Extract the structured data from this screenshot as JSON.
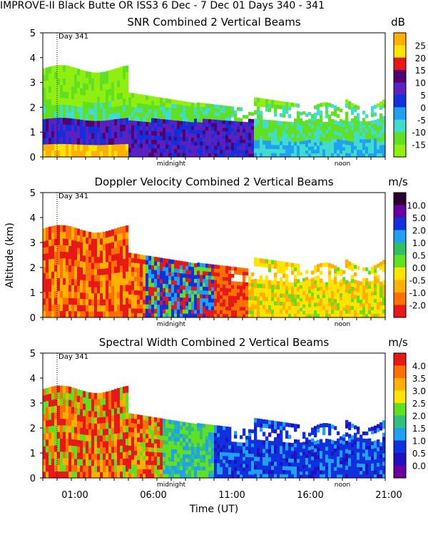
{
  "header": "IMPROVE-II  Black Butte OR  ISS3   6 Dec -  7 Dec 01 Days 340 - 341",
  "xlabel": "Time (UT)",
  "ylabel": "Altitude (km)",
  "chart_data": [
    {
      "type": "heatmap",
      "title": "SNR Combined 2 Vertical Beams",
      "unit": "dB",
      "ylim": [
        0,
        5
      ],
      "yticks": [
        "0",
        "1",
        "2",
        "3",
        "4",
        "5"
      ],
      "day_marker": "Day 341",
      "time_marks": [
        "midnight",
        "noon"
      ],
      "colorbar": {
        "labels": [
          "25",
          "20",
          "15",
          "10",
          "5",
          "0",
          "-5",
          "-10",
          "-15"
        ],
        "colors": [
          "#ffb000",
          "#ffe400",
          "#e81818",
          "#500070",
          "#5a20c0",
          "#1030e0",
          "#20a0f0",
          "#40dcd0",
          "#60e020",
          "#90ee10"
        ]
      }
    },
    {
      "type": "heatmap",
      "title": "Doppler Velocity Combined 2 Vertical Beams",
      "unit": "m/s",
      "ylim": [
        0,
        5
      ],
      "yticks": [
        "0",
        "1",
        "2",
        "3",
        "4",
        "5"
      ],
      "day_marker": "Day 341",
      "time_marks": [
        "midnight",
        "noon"
      ],
      "colorbar": {
        "labels": [
          "10.0",
          "5.0",
          "2.0",
          "1.0",
          "0.5",
          "0.0",
          "-0.5",
          "-1.0",
          "-2.0"
        ],
        "colors": [
          "#2a0030",
          "#6a00a0",
          "#1030e0",
          "#20a0f0",
          "#30c060",
          "#60e020",
          "#ffe400",
          "#ffb000",
          "#ff7000",
          "#e81818"
        ]
      }
    },
    {
      "type": "heatmap",
      "title": "Spectral Width Combined 2 Vertical Beams",
      "unit": "m/s",
      "ylim": [
        0,
        5
      ],
      "yticks": [
        "0",
        "1",
        "2",
        "3",
        "4",
        "5"
      ],
      "day_marker": "Day 341",
      "time_marks": [
        "midnight",
        "noon"
      ],
      "xticks": [
        "01:00",
        "06:00",
        "11:00",
        "16:00",
        "21:00"
      ],
      "colorbar": {
        "labels": [
          "4.0",
          "3.5",
          "3.0",
          "2.5",
          "2.0",
          "1.5",
          "1.0",
          "0.5",
          "0.0"
        ],
        "colors": [
          "#e81818",
          "#ff7000",
          "#ffb000",
          "#ffe400",
          "#60e020",
          "#30c080",
          "#20a0f0",
          "#1030e0",
          "#2010c0",
          "#6a00a0"
        ]
      }
    }
  ]
}
